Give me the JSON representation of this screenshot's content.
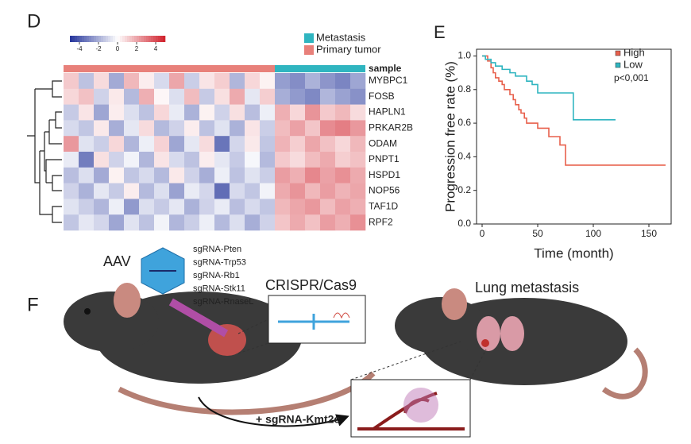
{
  "panels": {
    "d": "D",
    "e": "E",
    "f": "F"
  },
  "chart_data": [
    {
      "type": "heatmap",
      "rows": [
        "MYBPC1",
        "FOSB",
        "HAPLN1",
        "PRKAR2B",
        "ODAM",
        "PNPT1",
        "HSPD1",
        "NOP56",
        "TAF1D",
        "RPF2"
      ],
      "values": [
        [
          1.2,
          -1.5,
          0.8,
          -2.1,
          1.6,
          0.4,
          -0.9,
          2.0,
          -1.2,
          0.6,
          1.1,
          -1.8,
          0.9,
          0.3,
          -2.4,
          -2.8,
          -1.9,
          -2.6,
          -3.0,
          -2.2
        ],
        [
          0.9,
          1.4,
          -1.1,
          0.5,
          -1.7,
          1.8,
          0.2,
          -0.8,
          1.5,
          -1.3,
          0.7,
          1.9,
          -0.6,
          1.1,
          -2.0,
          -2.5,
          -2.9,
          -1.8,
          -2.3,
          -2.7
        ],
        [
          -1.3,
          0.6,
          -2.2,
          0.4,
          -0.8,
          -1.5,
          0.9,
          -0.5,
          -1.9,
          0.3,
          -1.1,
          0.7,
          -1.6,
          -0.4,
          1.8,
          0.9,
          2.4,
          1.2,
          1.6,
          0.8
        ],
        [
          -0.9,
          -1.4,
          0.5,
          -2.0,
          -0.6,
          0.8,
          -1.7,
          -1.1,
          0.4,
          -1.5,
          -0.7,
          -1.9,
          0.6,
          -1.2,
          1.5,
          2.1,
          1.3,
          2.6,
          2.9,
          2.3
        ],
        [
          2.3,
          -0.7,
          -1.2,
          0.9,
          -1.8,
          -0.4,
          1.0,
          -2.2,
          -0.6,
          0.8,
          -3.4,
          -1.0,
          0.5,
          -1.4,
          1.7,
          1.1,
          2.0,
          1.4,
          0.9,
          1.6
        ],
        [
          -0.5,
          -3.2,
          0.7,
          -1.1,
          -0.3,
          -1.8,
          0.6,
          -0.9,
          -1.5,
          0.4,
          -0.6,
          -1.3,
          -0.2,
          -1.7,
          1.2,
          0.8,
          1.5,
          1.9,
          1.1,
          1.4
        ],
        [
          -1.6,
          -0.8,
          -2.1,
          0.3,
          -1.4,
          -0.9,
          -1.7,
          0.5,
          -1.1,
          -2.0,
          -0.4,
          -1.5,
          -0.7,
          -1.2,
          2.2,
          1.8,
          2.7,
          2.1,
          2.5,
          1.9
        ],
        [
          -1.1,
          -1.9,
          -0.6,
          -1.3,
          0.4,
          -1.7,
          -0.8,
          -2.3,
          -0.5,
          -1.0,
          -3.6,
          -0.9,
          -1.4,
          -0.3,
          1.9,
          2.4,
          1.6,
          2.2,
          1.7,
          2.0
        ],
        [
          -0.7,
          -1.2,
          -1.8,
          -0.4,
          -2.5,
          -0.8,
          -1.3,
          -0.6,
          -1.9,
          -1.1,
          -0.5,
          -1.6,
          -0.9,
          -1.4,
          1.6,
          2.0,
          2.3,
          1.5,
          2.1,
          1.8
        ],
        [
          -1.4,
          -0.6,
          -1.0,
          -2.2,
          -0.7,
          -1.5,
          -0.3,
          -1.8,
          -1.2,
          -0.4,
          -1.7,
          -0.8,
          -2.0,
          -1.1,
          1.3,
          1.9,
          1.4,
          2.2,
          1.8,
          2.5
        ]
      ],
      "annotation": {
        "label": "sample",
        "segments": [
          {
            "name": "Primary tumor",
            "color": "#e8807a",
            "columns": 14
          },
          {
            "name": "Metastasis",
            "color": "#2fb5c0",
            "columns": 6
          }
        ]
      },
      "legend_order": [
        1,
        0
      ],
      "colorbar": {
        "lim": [
          -5,
          5
        ],
        "ticks": [
          -4,
          -2,
          0,
          2,
          4
        ],
        "low_color": "#23349a",
        "mid_color": "#ffffff",
        "high_color": "#d0202b"
      }
    },
    {
      "type": "line",
      "step": true,
      "xlabel": "Time (month)",
      "ylabel": "Progression free rate (%)",
      "xlim": [
        -5,
        170
      ],
      "ylim": [
        0,
        1.04
      ],
      "xticks": [
        0,
        50,
        100,
        150
      ],
      "yticks": [
        {
          "value": 0,
          "label": "0.0"
        },
        0.2,
        0.4,
        0.6,
        0.8,
        {
          "value": 1,
          "label": "1.0"
        }
      ],
      "legend": "upper right",
      "annotation": "p<0,001",
      "series": [
        {
          "name": "High",
          "color": "#e8604c",
          "x": [
            0,
            5,
            8,
            10,
            12,
            15,
            18,
            20,
            25,
            28,
            30,
            33,
            35,
            38,
            40,
            45,
            50,
            55,
            60,
            65,
            70,
            75,
            165
          ],
          "values": [
            1,
            0.97,
            0.93,
            0.9,
            0.87,
            0.85,
            0.83,
            0.8,
            0.77,
            0.74,
            0.71,
            0.68,
            0.66,
            0.63,
            0.6,
            0.6,
            0.57,
            0.57,
            0.52,
            0.52,
            0.47,
            0.35,
            0.35
          ]
        },
        {
          "name": "Low",
          "color": "#2fb5c0",
          "x": [
            0,
            3,
            8,
            12,
            18,
            25,
            30,
            40,
            45,
            50,
            82,
            120
          ],
          "values": [
            1,
            0.98,
            0.96,
            0.94,
            0.92,
            0.9,
            0.88,
            0.85,
            0.83,
            0.78,
            0.62,
            0.62
          ]
        }
      ]
    }
  ],
  "figure_f": {
    "aav": "AAV",
    "guides": [
      "sgRNA-Pten",
      "sgRNA-Trp53",
      "sgRNA-Rb1",
      "sgRNA-Stk11",
      "sgRNA-RnaseL"
    ],
    "crispr": "CRISPR/Cas9",
    "lung": "Lung metastasis",
    "kmt2c": "+ sgRNA-Kmt2c"
  }
}
